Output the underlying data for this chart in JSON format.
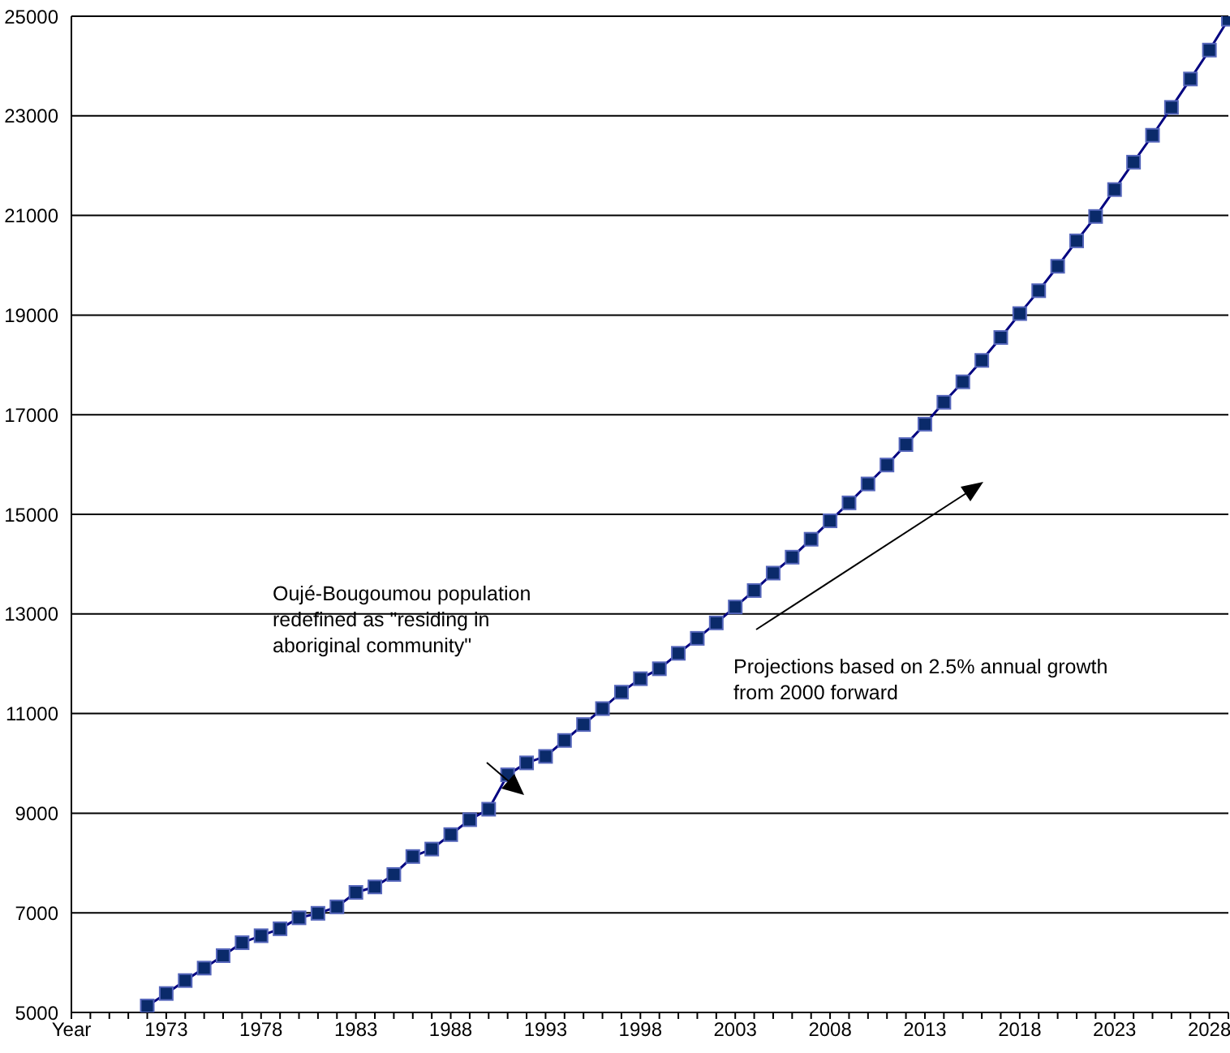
{
  "chart_data": {
    "type": "line",
    "categories": [
      "Year",
      null,
      null,
      null,
      null,
      "1973",
      null,
      null,
      null,
      null,
      "1978",
      null,
      null,
      null,
      null,
      "1983",
      null,
      null,
      null,
      null,
      "1988",
      null,
      null,
      null,
      null,
      "1993",
      null,
      null,
      null,
      null,
      "1998",
      null,
      null,
      null,
      null,
      "2003",
      null,
      null,
      null,
      null,
      "2008",
      null,
      null,
      null,
      null,
      "2013",
      null,
      null,
      null,
      null,
      "2018",
      null,
      null,
      null,
      null,
      "2023",
      null,
      null,
      null,
      null,
      "2028",
      null
    ],
    "series": [
      {
        "color": "#000080",
        "values": [
          null,
          null,
          null,
          null,
          5130,
          5380,
          5640,
          5890,
          6140,
          6400,
          6540,
          6680,
          6900,
          6990,
          7120,
          7410,
          7520,
          7770,
          8130,
          8280,
          8570,
          8870,
          9080,
          9770,
          10010,
          10140,
          10460,
          10780,
          11100,
          11430,
          11700,
          11900,
          12210,
          12510,
          12820,
          13140,
          13470,
          13820,
          14140,
          14500,
          14870,
          15230,
          15610,
          15990,
          16400,
          16810,
          17250,
          17660,
          18090,
          18550,
          19030,
          19490,
          19980,
          20490,
          20980,
          21520,
          22070,
          22610,
          23170,
          23740,
          24320,
          24940
        ]
      }
    ],
    "ylim": [
      5000,
      25000
    ],
    "yticks": [
      5000,
      7000,
      9000,
      11000,
      13000,
      15000,
      17000,
      19000,
      21000,
      23000,
      25000
    ],
    "grid": "y",
    "marker": "square",
    "legend": false,
    "annotations": [
      "Oujé-Bougoumou population\nredefined as \"residing in\naboriginal community\"",
      "Projections based on 2.5% annual growth\nfrom 2000 forward"
    ]
  }
}
